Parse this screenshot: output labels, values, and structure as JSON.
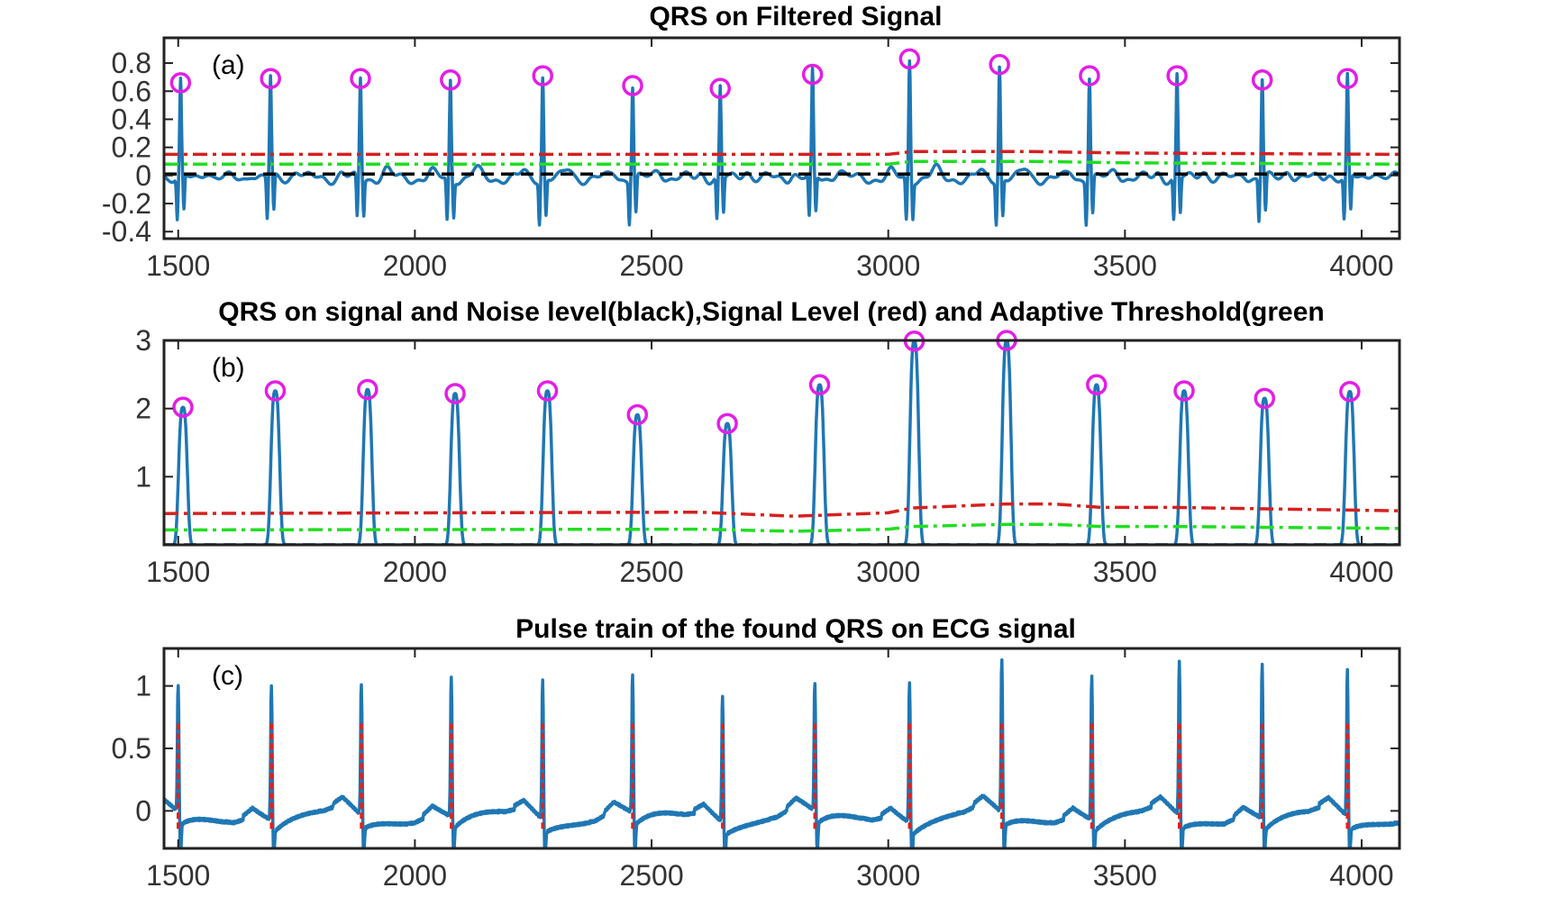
{
  "colors": {
    "signal": "#1f77b4",
    "marker": "#e31ee6",
    "signal_level": "#d62020",
    "threshold": "#22dd22",
    "noise_level": "#000000",
    "pulse": "#e02020",
    "axes": "#222222"
  },
  "chart_data": [
    {
      "type": "line",
      "panel_label": "(a)",
      "title": "QRS on Filtered Signal",
      "xlim": [
        1470,
        4080
      ],
      "ylim": [
        -0.45,
        0.98
      ],
      "xticks": [
        1500,
        2000,
        2500,
        3000,
        3500,
        4000
      ],
      "xtick_labels": [
        "1500",
        "2000",
        "2500",
        "3000",
        "3500",
        "4000"
      ],
      "yticks": [
        -0.4,
        -0.2,
        0,
        0.2,
        0.4,
        0.6,
        0.8
      ],
      "ytick_labels": [
        "-0.4",
        "-0.2",
        "0",
        "0.2",
        "0.4",
        "0.6",
        "0.8"
      ],
      "peaks": {
        "x": [
          1505,
          1695,
          1885,
          2075,
          2270,
          2460,
          2645,
          2840,
          3045,
          3235,
          3425,
          3610,
          3790,
          3970
        ],
        "y": [
          0.66,
          0.69,
          0.69,
          0.68,
          0.71,
          0.64,
          0.62,
          0.72,
          0.83,
          0.79,
          0.71,
          0.71,
          0.68,
          0.69
        ]
      },
      "baseline": -0.02,
      "trough": -0.32,
      "signal_level": {
        "x": [
          1470,
          2800,
          3000,
          3050,
          3300,
          3500,
          4080
        ],
        "y": [
          0.15,
          0.15,
          0.15,
          0.17,
          0.17,
          0.16,
          0.15
        ]
      },
      "threshold": {
        "x": [
          1470,
          2800,
          3000,
          3050,
          3300,
          3500,
          4080
        ],
        "y": [
          0.08,
          0.08,
          0.08,
          0.1,
          0.1,
          0.09,
          0.08
        ]
      },
      "noise_level": {
        "x": [
          1470,
          4080
        ],
        "y": [
          0.01,
          0.01
        ]
      }
    },
    {
      "type": "line",
      "panel_label": "(b)",
      "title": "QRS on signal and Noise level(black),Signal Level (red) and Adaptive Threshold(green",
      "xlim": [
        1470,
        4080
      ],
      "ylim": [
        0,
        3
      ],
      "xticks": [
        1500,
        2000,
        2500,
        3000,
        3500,
        4000
      ],
      "xtick_labels": [
        "1500",
        "2000",
        "2500",
        "3000",
        "3500",
        "4000"
      ],
      "yticks": [
        1,
        2,
        3
      ],
      "ytick_labels": [
        "1",
        "2",
        "3"
      ],
      "peaks": {
        "x": [
          1510,
          1705,
          1900,
          2085,
          2280,
          2470,
          2660,
          2855,
          3055,
          3250,
          3440,
          3625,
          3795,
          3975
        ],
        "y": [
          2.02,
          2.26,
          2.28,
          2.22,
          2.26,
          1.91,
          1.78,
          2.35,
          2.99,
          3.0,
          2.35,
          2.26,
          2.15,
          2.25
        ]
      },
      "signal_level": {
        "x": [
          1470,
          2600,
          2800,
          3000,
          3050,
          3250,
          3350,
          3450,
          3600,
          4080
        ],
        "y": [
          0.46,
          0.48,
          0.42,
          0.47,
          0.54,
          0.6,
          0.6,
          0.55,
          0.55,
          0.5
        ]
      },
      "threshold": {
        "x": [
          1470,
          2600,
          2800,
          3000,
          3050,
          3250,
          3350,
          3450,
          3600,
          4080
        ],
        "y": [
          0.22,
          0.23,
          0.2,
          0.23,
          0.27,
          0.3,
          0.3,
          0.27,
          0.27,
          0.24
        ]
      },
      "noise_level": {
        "x": [
          1470,
          4080
        ],
        "y": [
          0.0,
          0.0
        ]
      }
    },
    {
      "type": "line",
      "panel_label": "(c)",
      "title": "Pulse train of the found QRS on ECG signal",
      "xlim": [
        1470,
        4080
      ],
      "ylim": [
        -0.3,
        1.3
      ],
      "xticks": [
        1500,
        2000,
        2500,
        3000,
        3500,
        4000
      ],
      "xtick_labels": [
        "1500",
        "2000",
        "2500",
        "3000",
        "3500",
        "4000"
      ],
      "yticks": [
        0,
        0.5,
        1
      ],
      "ytick_labels": [
        "0",
        "0.5",
        "1"
      ],
      "peaks": {
        "x": [
          1500,
          1697,
          1887,
          2077,
          2270,
          2460,
          2650,
          2845,
          3045,
          3240,
          3430,
          3615,
          3790,
          3970
        ],
        "y": [
          1.09,
          1.14,
          1.12,
          1.19,
          1.18,
          1.18,
          1.08,
          1.1,
          1.2,
          1.3,
          1.22,
          1.3,
          1.3,
          1.24
        ]
      },
      "pulse_top": 0.7,
      "pulse_bottom": -0.15
    }
  ]
}
